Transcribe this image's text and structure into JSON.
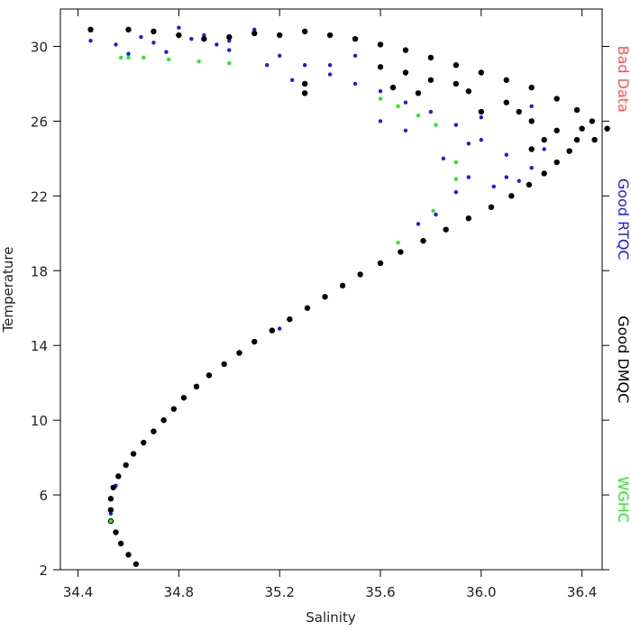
{
  "chart_data": {
    "type": "scatter",
    "x_label": "Salinity",
    "y_label": "Temperature",
    "xlim": [
      34.33,
      36.48
    ],
    "ylim": [
      2,
      32
    ],
    "xticks": [
      34.4,
      34.8,
      35.2,
      35.6,
      {
        "value": 36.0,
        "label": "36.0"
      },
      36.4
    ],
    "yticks": [
      2,
      6,
      10,
      14,
      18,
      22,
      26,
      30
    ],
    "series": [
      {
        "name": "Bad Data",
        "color": "#ff5050",
        "x": [],
        "y": []
      },
      {
        "name": "Good RTQC",
        "color": "#1a1aee",
        "x": [
          34.45,
          34.55,
          34.6,
          34.7,
          34.8,
          34.9,
          35.0,
          35.1,
          35.2,
          35.3,
          35.4,
          35.5,
          35.6,
          35.7,
          35.8,
          35.9,
          36.0,
          36.1,
          36.2,
          36.15,
          36.05,
          35.95,
          35.85,
          35.9,
          35.82,
          35.75,
          36.0,
          35.95,
          36.25,
          36.2,
          35.5,
          35.4,
          35.25,
          35.15,
          35.0,
          34.85,
          34.75,
          35.6,
          35.7,
          36.1,
          34.53,
          34.55,
          35.2,
          34.95,
          34.65
        ],
        "y": [
          30.3,
          30.1,
          29.6,
          30.2,
          31.0,
          30.6,
          29.8,
          30.9,
          29.5,
          29.0,
          28.5,
          28.0,
          27.6,
          27.0,
          26.5,
          25.8,
          25.0,
          24.2,
          23.5,
          22.8,
          22.5,
          23.0,
          24.0,
          22.2,
          21.0,
          20.5,
          26.2,
          24.8,
          24.5,
          26.8,
          29.5,
          29.0,
          28.2,
          29.0,
          30.3,
          30.4,
          29.7,
          26.0,
          25.5,
          23.0,
          5.0,
          6.5,
          14.9,
          30.1,
          30.5
        ]
      },
      {
        "name": "Good DMQC",
        "color": "#000000",
        "x": [
          34.63,
          34.6,
          34.57,
          34.55,
          34.53,
          34.53,
          34.53,
          34.54,
          34.56,
          34.59,
          34.62,
          34.66,
          34.7,
          34.74,
          34.78,
          34.82,
          34.87,
          34.92,
          34.98,
          35.04,
          35.1,
          35.17,
          35.24,
          35.31,
          35.38,
          35.45,
          35.52,
          35.6,
          35.68,
          35.77,
          35.86,
          35.95,
          36.04,
          36.12,
          36.19,
          36.25,
          36.3,
          36.35,
          36.38,
          36.4,
          36.44,
          36.38,
          36.3,
          36.2,
          36.1,
          36.0,
          35.9,
          35.8,
          35.7,
          35.6,
          35.5,
          35.4,
          35.3,
          35.2,
          35.1,
          35.0,
          34.9,
          34.8,
          34.7,
          34.6,
          34.45,
          36.2,
          36.25,
          36.1,
          35.95,
          35.8,
          35.7,
          35.6,
          36.0,
          36.3,
          36.15,
          35.9,
          35.75,
          35.65,
          36.45,
          36.5,
          35.3,
          35.3,
          36.2
        ],
        "y": [
          2.3,
          2.8,
          3.4,
          4.0,
          4.6,
          5.2,
          5.8,
          6.4,
          7.0,
          7.6,
          8.2,
          8.8,
          9.4,
          10.0,
          10.6,
          11.2,
          11.8,
          12.4,
          13.0,
          13.6,
          14.2,
          14.8,
          15.4,
          16.0,
          16.6,
          17.2,
          17.8,
          18.4,
          19.0,
          19.6,
          20.2,
          20.8,
          21.4,
          22.0,
          22.6,
          23.2,
          23.8,
          24.4,
          25.0,
          25.6,
          26.0,
          26.6,
          27.2,
          27.8,
          28.2,
          28.6,
          29.0,
          29.4,
          29.8,
          30.1,
          30.4,
          30.6,
          30.8,
          30.6,
          30.7,
          30.5,
          30.4,
          30.6,
          30.8,
          30.9,
          30.9,
          26.0,
          25.0,
          27.0,
          27.6,
          28.2,
          28.6,
          28.9,
          26.5,
          25.5,
          26.5,
          28.0,
          27.5,
          27.8,
          25.0,
          25.6,
          27.5,
          28.0,
          24.5
        ]
      },
      {
        "name": "WGHC",
        "color": "#22ee22",
        "x": [
          34.57,
          34.6,
          34.66,
          34.76,
          34.88,
          35.0,
          35.6,
          35.67,
          35.75,
          35.82,
          35.9,
          35.9,
          35.81,
          35.67,
          34.53
        ],
        "y": [
          29.4,
          29.4,
          29.4,
          29.3,
          29.2,
          29.1,
          27.2,
          26.8,
          26.3,
          25.8,
          23.8,
          22.9,
          21.2,
          19.5,
          4.6
        ]
      }
    ]
  }
}
